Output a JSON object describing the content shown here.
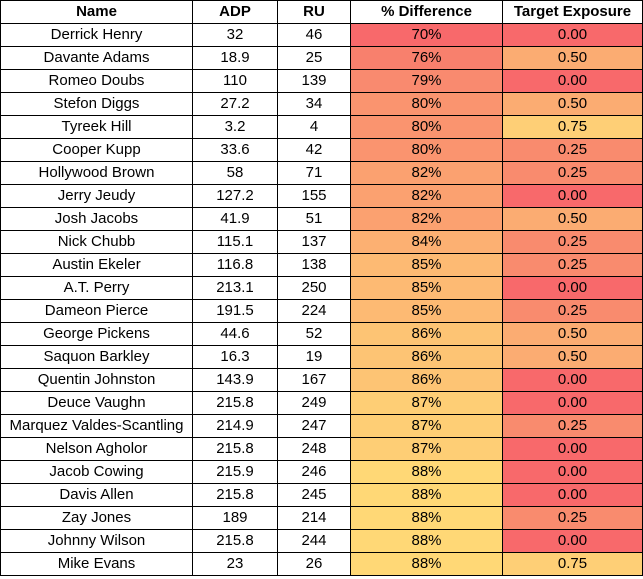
{
  "headers": [
    "Name",
    "ADP",
    "RU",
    "% Difference",
    "Target Exposure"
  ],
  "colors": {
    "diff": [
      "#f8696b",
      "#f8806d",
      "#f98a6f",
      "#fa946f",
      "#fa946f",
      "#fa946f",
      "#fba170",
      "#fba170",
      "#fba170",
      "#fcb072",
      "#fdba73",
      "#fdba73",
      "#fdba73",
      "#fdc474",
      "#fdc474",
      "#fdc474",
      "#fece75",
      "#fece75",
      "#fece75",
      "#ffd876",
      "#ffd876",
      "#ffd876",
      "#ffd876",
      "#ffd876"
    ],
    "exposure": {
      "0.00": "#f8696b",
      "0.25": "#f98b6e",
      "0.50": "#fbac72",
      "0.75": "#fecf76"
    }
  },
  "rows": [
    {
      "name": "Derrick Henry",
      "adp": "32",
      "ru": "46",
      "diff": "70%",
      "exposure": "0.00"
    },
    {
      "name": "Davante Adams",
      "adp": "18.9",
      "ru": "25",
      "diff": "76%",
      "exposure": "0.50"
    },
    {
      "name": "Romeo Doubs",
      "adp": "110",
      "ru": "139",
      "diff": "79%",
      "exposure": "0.00"
    },
    {
      "name": "Stefon Diggs",
      "adp": "27.2",
      "ru": "34",
      "diff": "80%",
      "exposure": "0.50"
    },
    {
      "name": "Tyreek Hill",
      "adp": "3.2",
      "ru": "4",
      "diff": "80%",
      "exposure": "0.75"
    },
    {
      "name": "Cooper Kupp",
      "adp": "33.6",
      "ru": "42",
      "diff": "80%",
      "exposure": "0.25"
    },
    {
      "name": "Hollywood Brown",
      "adp": "58",
      "ru": "71",
      "diff": "82%",
      "exposure": "0.25"
    },
    {
      "name": "Jerry Jeudy",
      "adp": "127.2",
      "ru": "155",
      "diff": "82%",
      "exposure": "0.00"
    },
    {
      "name": "Josh Jacobs",
      "adp": "41.9",
      "ru": "51",
      "diff": "82%",
      "exposure": "0.50"
    },
    {
      "name": "Nick Chubb",
      "adp": "115.1",
      "ru": "137",
      "diff": "84%",
      "exposure": "0.25"
    },
    {
      "name": "Austin Ekeler",
      "adp": "116.8",
      "ru": "138",
      "diff": "85%",
      "exposure": "0.25"
    },
    {
      "name": "A.T. Perry",
      "adp": "213.1",
      "ru": "250",
      "diff": "85%",
      "exposure": "0.00"
    },
    {
      "name": "Dameon Pierce",
      "adp": "191.5",
      "ru": "224",
      "diff": "85%",
      "exposure": "0.25"
    },
    {
      "name": "George Pickens",
      "adp": "44.6",
      "ru": "52",
      "diff": "86%",
      "exposure": "0.50"
    },
    {
      "name": "Saquon Barkley",
      "adp": "16.3",
      "ru": "19",
      "diff": "86%",
      "exposure": "0.50"
    },
    {
      "name": "Quentin Johnston",
      "adp": "143.9",
      "ru": "167",
      "diff": "86%",
      "exposure": "0.00"
    },
    {
      "name": "Deuce Vaughn",
      "adp": "215.8",
      "ru": "249",
      "diff": "87%",
      "exposure": "0.00"
    },
    {
      "name": "Marquez Valdes-Scantling",
      "adp": "214.9",
      "ru": "247",
      "diff": "87%",
      "exposure": "0.25"
    },
    {
      "name": "Nelson Agholor",
      "adp": "215.8",
      "ru": "248",
      "diff": "87%",
      "exposure": "0.00"
    },
    {
      "name": "Jacob Cowing",
      "adp": "215.9",
      "ru": "246",
      "diff": "88%",
      "exposure": "0.00"
    },
    {
      "name": "Davis Allen",
      "adp": "215.8",
      "ru": "245",
      "diff": "88%",
      "exposure": "0.00"
    },
    {
      "name": "Zay Jones",
      "adp": "189",
      "ru": "214",
      "diff": "88%",
      "exposure": "0.25"
    },
    {
      "name": "Johnny Wilson",
      "adp": "215.8",
      "ru": "244",
      "diff": "88%",
      "exposure": "0.00"
    },
    {
      "name": "Mike Evans",
      "adp": "23",
      "ru": "26",
      "diff": "88%",
      "exposure": "0.75"
    }
  ]
}
